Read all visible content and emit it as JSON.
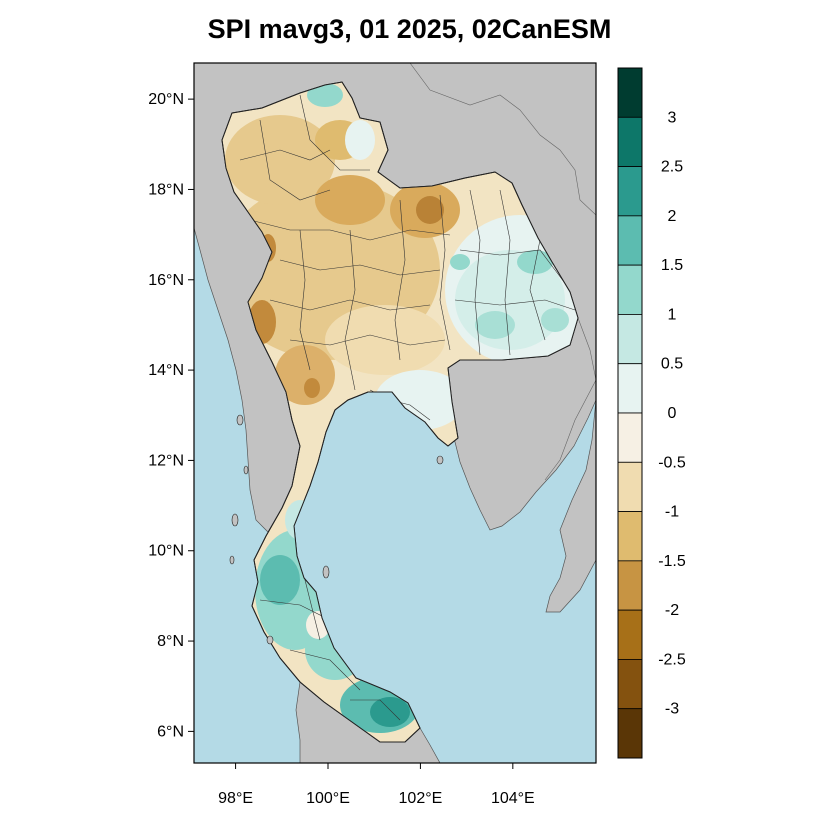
{
  "title": "SPI mavg3, 01 2025, 02CanESM",
  "axes": {
    "lat_ticks": [
      {
        "value": 20,
        "label": "20°N"
      },
      {
        "value": 18,
        "label": "18°N"
      },
      {
        "value": 16,
        "label": "16°N"
      },
      {
        "value": 14,
        "label": "14°N"
      },
      {
        "value": 12,
        "label": "12°N"
      },
      {
        "value": 10,
        "label": "10°N"
      },
      {
        "value": 8,
        "label": "8°N"
      },
      {
        "value": 6,
        "label": "6°N"
      }
    ],
    "lon_ticks": [
      {
        "value": 98,
        "label": "98°E"
      },
      {
        "value": 100,
        "label": "100°E"
      },
      {
        "value": 102,
        "label": "102°E"
      },
      {
        "value": 104,
        "label": "104°E"
      }
    ],
    "lon_range": [
      97.1,
      105.8
    ],
    "lat_range": [
      5.3,
      20.8
    ]
  },
  "colorbar": {
    "colors": [
      "#5a3606",
      "#84520f",
      "#a77018",
      "#c79443",
      "#dfbb6f",
      "#f0dcb0",
      "#f6f0e4",
      "#e7f3f1",
      "#c5e8e3",
      "#93d8cc",
      "#5cbcb0",
      "#2b9a8e",
      "#0d7769",
      "#003c30"
    ],
    "labels": [
      "-3",
      "-2.5",
      "-2",
      "-1.5",
      "-1",
      "-0.5",
      "0",
      "0.5",
      "1",
      "1.5",
      "2",
      "2.5",
      "3"
    ]
  },
  "legend": {
    "ocean_color": "#b4dae6",
    "land_color": "#c2c2c2"
  }
}
